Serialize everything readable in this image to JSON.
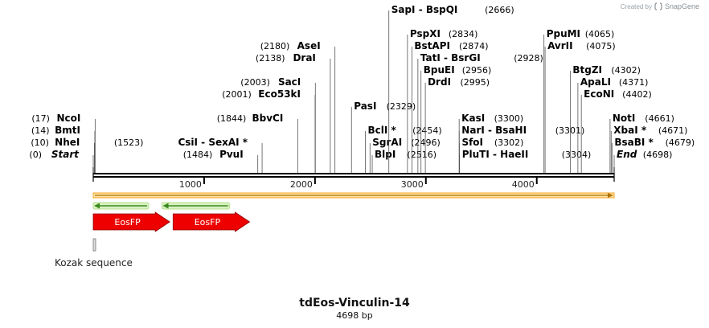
{
  "credit": {
    "prefix": "Created by",
    "brand": "SnapGene"
  },
  "plasmid": {
    "name": "tdEos-Vinculin-14",
    "length_label": "4698 bp",
    "length": 4698
  },
  "ruler": {
    "ticks": [
      {
        "pos": 1000,
        "label": "1000"
      },
      {
        "pos": 2000,
        "label": "2000"
      },
      {
        "pos": 3000,
        "label": "3000"
      },
      {
        "pos": 4000,
        "label": "4000"
      }
    ]
  },
  "sites": [
    {
      "name": "Start",
      "pos": 0,
      "pos_label": "(0)",
      "side": "left",
      "italic": true,
      "row": 0
    },
    {
      "name": "NheI",
      "pos": 10,
      "pos_label": "(10)",
      "side": "left",
      "row": 1
    },
    {
      "name": "BmtI",
      "pos": 14,
      "pos_label": "(14)",
      "side": "left",
      "row": 2
    },
    {
      "name": "NcoI",
      "pos": 17,
      "pos_label": "(17)",
      "side": "left",
      "row": 3
    },
    {
      "name": "PvuI",
      "pos": 1484,
      "pos_label": "(1484)",
      "side": "left",
      "row": 0
    },
    {
      "name": "CsiI  -  SexAI *",
      "pos": 1523,
      "pos_label": "(1523)",
      "side": "left",
      "row": 1
    },
    {
      "name": "BbvCI",
      "pos": 1844,
      "pos_label": "(1844)",
      "side": "left",
      "row": 3
    },
    {
      "name": "Eco53kI",
      "pos": 2001,
      "pos_label": "(2001)",
      "side": "left",
      "row": 5
    },
    {
      "name": "SacI",
      "pos": 2003,
      "pos_label": "(2003)",
      "side": "left",
      "row": 6
    },
    {
      "name": "DraI",
      "pos": 2138,
      "pos_label": "(2138)",
      "side": "left",
      "row": 8
    },
    {
      "name": "AseI",
      "pos": 2180,
      "pos_label": "(2180)",
      "side": "left",
      "row": 9
    },
    {
      "name": "PasI",
      "pos": 2329,
      "pos_label": "(2329)",
      "side": "right",
      "row": 4
    },
    {
      "name": "BclI *",
      "pos": 2454,
      "pos_label": "(2454)",
      "side": "right",
      "row": 2
    },
    {
      "name": "SgrAI",
      "pos": 2496,
      "pos_label": "(2496)",
      "side": "right",
      "row": 1
    },
    {
      "name": "BlpI",
      "pos": 2516,
      "pos_label": "(2516)",
      "side": "right",
      "row": 0
    },
    {
      "name": "SapI  -  BspQI",
      "pos": 2666,
      "pos_label": "(2666)",
      "side": "right",
      "row": 12
    },
    {
      "name": "PspXI",
      "pos": 2834,
      "pos_label": "(2834)",
      "side": "right",
      "row": 10
    },
    {
      "name": "BstAPI",
      "pos": 2874,
      "pos_label": "(2874)",
      "side": "right",
      "row": 9
    },
    {
      "name": "TatI  -  BsrGI",
      "pos": 2928,
      "pos_label": "(2928)",
      "side": "right",
      "row": 8
    },
    {
      "name": "BpuEI",
      "pos": 2956,
      "pos_label": "(2956)",
      "side": "right",
      "row": 7
    },
    {
      "name": "DrdI",
      "pos": 2995,
      "pos_label": "(2995)",
      "side": "right",
      "row": 6
    },
    {
      "name": "KasI",
      "pos": 3300,
      "pos_label": "(3300)",
      "side": "right",
      "row": 3
    },
    {
      "name": "NarI  -  BsaHI",
      "pos": 3301,
      "pos_label": "(3301)",
      "side": "right",
      "row": 2
    },
    {
      "name": "SfoI",
      "pos": 3302,
      "pos_label": "(3302)",
      "side": "right",
      "row": 1
    },
    {
      "name": "PluTI  -  HaeII",
      "pos": 3304,
      "pos_label": "(3304)",
      "side": "right",
      "row": 0
    },
    {
      "name": "PpuMI",
      "pos": 4065,
      "pos_label": "(4065)",
      "side": "right",
      "row": 10
    },
    {
      "name": "AvrII",
      "pos": 4075,
      "pos_label": "(4075)",
      "side": "right",
      "row": 9
    },
    {
      "name": "BtgZI",
      "pos": 4302,
      "pos_label": "(4302)",
      "side": "right",
      "row": 7
    },
    {
      "name": "ApaLI",
      "pos": 4371,
      "pos_label": "(4371)",
      "side": "right",
      "row": 6
    },
    {
      "name": "EcoNI",
      "pos": 4402,
      "pos_label": "(4402)",
      "side": "right",
      "row": 5
    },
    {
      "name": "NotI",
      "pos": 4661,
      "pos_label": "(4661)",
      "side": "right",
      "row": 3
    },
    {
      "name": "XbaI *",
      "pos": 4671,
      "pos_label": "(4671)",
      "side": "right",
      "row": 2
    },
    {
      "name": "BsaBI *",
      "pos": 4679,
      "pos_label": "(4679)",
      "side": "right",
      "row": 1
    },
    {
      "name": "End",
      "pos": 4698,
      "pos_label": "(4698)",
      "side": "right",
      "italic": true,
      "row": 0
    }
  ],
  "features": [
    {
      "type": "orf",
      "start": 0,
      "end": 4698,
      "color": "#f5a623"
    },
    {
      "type": "green-arrow",
      "start": 0,
      "end": 500,
      "direction": "left",
      "color": "#3a8a1e"
    },
    {
      "type": "green-arrow",
      "start": 620,
      "end": 1230,
      "direction": "left",
      "color": "#3a8a1e"
    },
    {
      "type": "cds",
      "label": "EosFP",
      "start": 0,
      "end": 690,
      "color": "#ee0000"
    },
    {
      "type": "cds",
      "label": "EosFP",
      "start": 720,
      "end": 1410,
      "color": "#ee0000"
    },
    {
      "type": "misc",
      "label": "Kozak sequence",
      "start": 0,
      "end": 20,
      "color": "#999999"
    }
  ]
}
